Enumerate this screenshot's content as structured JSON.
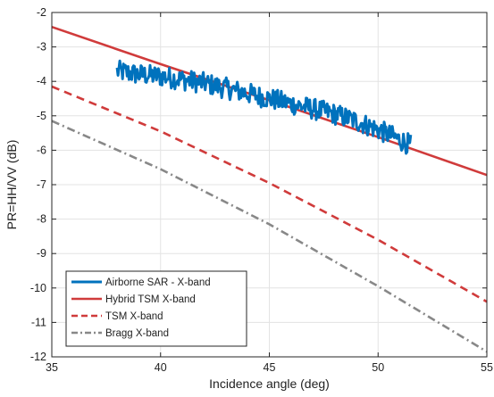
{
  "chart_data": {
    "type": "line",
    "xlabel": "Incidence angle (deg)",
    "ylabel": "PR=HH/VV (dB)",
    "xlim": [
      35,
      55
    ],
    "ylim": [
      -12,
      -2
    ],
    "xticks": [
      35,
      40,
      45,
      50,
      55
    ],
    "yticks": [
      -12,
      -11,
      -10,
      -9,
      -8,
      -7,
      -6,
      -5,
      -4,
      -3,
      -2
    ],
    "grid": true,
    "legend_position": "bottom-left",
    "series": [
      {
        "name": "Airborne SAR - X-band",
        "color": "#0072BD",
        "style": "solid",
        "noisy": true,
        "x": [
          38,
          39,
          40,
          41,
          42,
          43,
          44,
          45,
          46,
          47,
          48,
          49,
          50,
          51,
          51.5
        ],
        "y": [
          -3.7,
          -3.8,
          -3.85,
          -3.95,
          -4.05,
          -4.2,
          -4.35,
          -4.5,
          -4.65,
          -4.8,
          -4.95,
          -5.15,
          -5.4,
          -5.7,
          -5.85
        ]
      },
      {
        "name": "Hybrid TSM X-band",
        "color": "#D03B3B",
        "style": "solid",
        "x": [
          35,
          40,
          45,
          50,
          55
        ],
        "y": [
          -2.42,
          -3.5,
          -4.55,
          -5.62,
          -6.72
        ]
      },
      {
        "name": "TSM X-band",
        "color": "#D03B3B",
        "style": "dashed",
        "x": [
          35,
          40,
          45,
          50,
          55
        ],
        "y": [
          -4.15,
          -5.45,
          -6.95,
          -8.6,
          -10.4
        ]
      },
      {
        "name": "Bragg X-band",
        "color": "#888888",
        "style": "dashdot",
        "x": [
          35,
          40,
          45,
          50,
          55
        ],
        "y": [
          -5.15,
          -6.55,
          -8.15,
          -9.95,
          -11.85
        ]
      }
    ]
  }
}
